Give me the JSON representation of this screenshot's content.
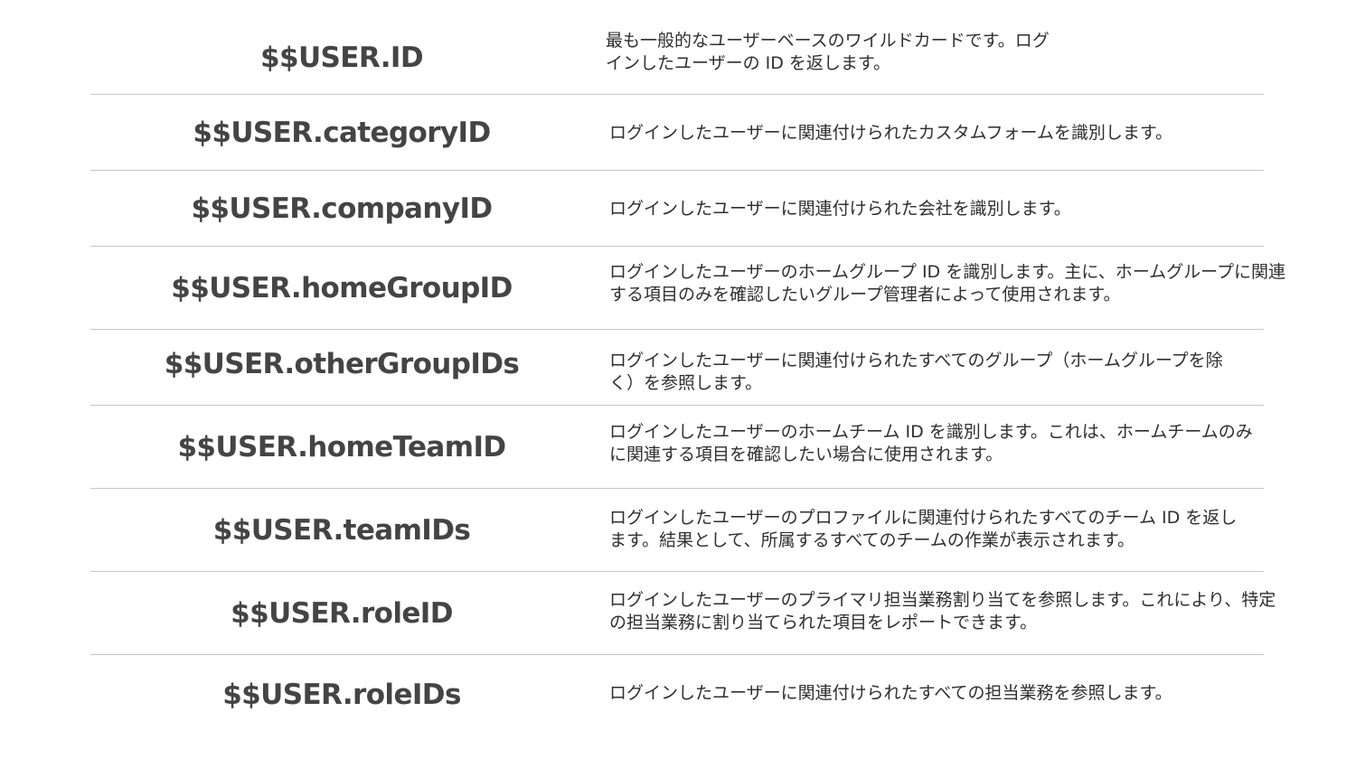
{
  "rows": [
    {
      "name": "$$USER.ID",
      "desc": [
        "最も一般的なユーザーベースのワイルドカードです。ログ",
        "インしたユーザーの ID を返します。"
      ]
    },
    {
      "name": "$$USER.categoryID",
      "desc": [
        "ログインしたユーザーに関連付けられたカスタムフォームを識別します。"
      ]
    },
    {
      "name": "$$USER.companyID",
      "desc": [
        "ログインしたユーザーに関連付けられた会社を識別します。"
      ]
    },
    {
      "name": "$$USER.homeGroupID",
      "desc": [
        "ログインしたユーザーのホームグループ ID を識別します。主に、ホームグループに関連",
        "する項目のみを確認したいグループ管理者によって使用されます。"
      ]
    },
    {
      "name": "$$USER.otherGroupIDs",
      "desc": [
        "ログインしたユーザーに関連付けられたすべてのグループ（ホームグループを除",
        "く）を参照します。"
      ]
    },
    {
      "name": "$$USER.homeTeamID",
      "desc": [
        "ログインしたユーザーのホームチーム ID を識別します。これは、ホームチームのみ",
        "に関連する項目を確認したい場合に使用されます。"
      ]
    },
    {
      "name": "$$USER.teamIDs",
      "desc": [
        "ログインしたユーザーのプロファイルに関連付けられたすべてのチーム ID を返し",
        "ます。結果として、所属するすべてのチームの作業が表示されます。"
      ]
    },
    {
      "name": "$$USER.roleID",
      "desc": [
        "ログインしたユーザーのプライマリ担当業務割り当てを参照します。これにより、特定",
        "の担当業務に割り当てられた項目をレポートできます。"
      ]
    },
    {
      "name": "$$USER.roleIDs",
      "desc": [
        "ログインしたユーザーに関連付けられたすべての担当業務を参照します。"
      ]
    }
  ]
}
